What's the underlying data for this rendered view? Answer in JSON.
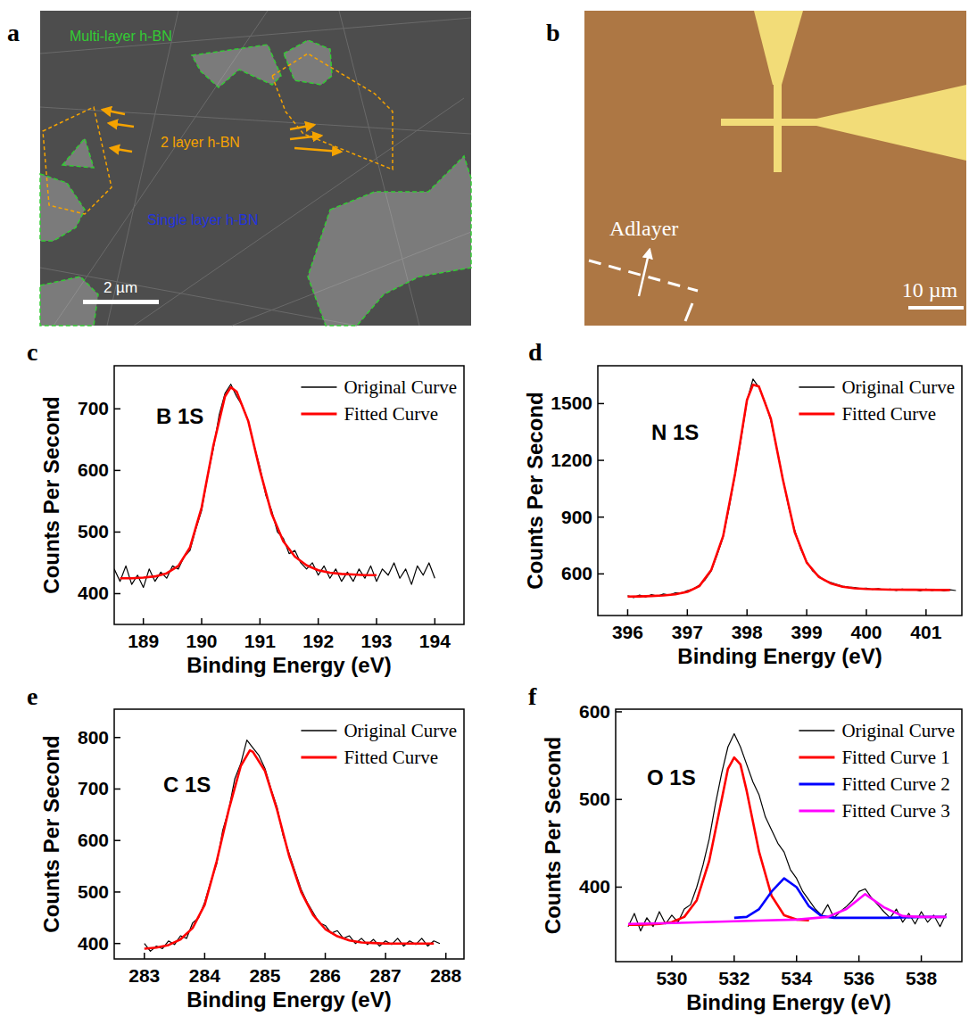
{
  "images": [
    {
      "panel": "a",
      "labels": [
        "Multi-layer h-BN",
        "2 layer h-BN",
        "Single layer h-BN"
      ],
      "scale_bar": "2 µm"
    },
    {
      "panel": "b",
      "labels": [
        "Adlayer"
      ],
      "scale_bar": "10 µm"
    }
  ],
  "chart_data": [
    {
      "type": "line",
      "panel": "c",
      "annotations": [
        "B 1S"
      ],
      "x_label": "Binding Energy (eV)",
      "y_label": "Counts Per Second",
      "xlim": [
        188.5,
        194.5
      ],
      "ylim": [
        350,
        770
      ],
      "xticks": [
        189,
        190,
        191,
        192,
        193,
        194
      ],
      "yticks": [
        400,
        500,
        600,
        700
      ],
      "legend": "upper right",
      "series": [
        {
          "name": "Original Curve",
          "color": "#000000",
          "x": [
            188.5,
            188.6,
            188.7,
            188.8,
            188.9,
            189.0,
            189.1,
            189.2,
            189.3,
            189.4,
            189.5,
            189.6,
            189.7,
            189.8,
            189.9,
            190.0,
            190.1,
            190.2,
            190.3,
            190.4,
            190.5,
            190.6,
            190.7,
            190.8,
            190.9,
            191.0,
            191.1,
            191.2,
            191.3,
            191.4,
            191.5,
            191.6,
            191.7,
            191.8,
            191.9,
            192.0,
            192.1,
            192.2,
            192.3,
            192.4,
            192.5,
            192.6,
            192.7,
            192.8,
            192.9,
            193.0,
            193.1,
            193.2,
            193.3,
            193.4,
            193.5,
            193.6,
            193.7,
            193.8,
            193.9,
            194.0
          ],
          "values": [
            440,
            420,
            445,
            415,
            430,
            410,
            440,
            420,
            435,
            425,
            445,
            440,
            460,
            470,
            505,
            535,
            590,
            635,
            690,
            725,
            740,
            720,
            705,
            680,
            640,
            605,
            560,
            535,
            500,
            490,
            465,
            470,
            450,
            440,
            450,
            430,
            445,
            425,
            440,
            420,
            435,
            420,
            440,
            425,
            445,
            420,
            440,
            430,
            450,
            425,
            440,
            415,
            445,
            430,
            450,
            425
          ]
        },
        {
          "name": "Fitted Curve",
          "color": "#ff0000",
          "x": [
            188.6,
            188.8,
            189.0,
            189.2,
            189.4,
            189.6,
            189.8,
            190.0,
            190.2,
            190.4,
            190.5,
            190.6,
            190.8,
            191.0,
            191.2,
            191.4,
            191.6,
            191.8,
            192.0,
            192.2,
            192.4,
            192.6,
            192.8,
            193.0
          ],
          "values": [
            425,
            425,
            426,
            428,
            433,
            445,
            475,
            540,
            640,
            720,
            735,
            728,
            680,
            600,
            530,
            485,
            460,
            446,
            438,
            434,
            432,
            431,
            430,
            430
          ]
        }
      ]
    },
    {
      "type": "line",
      "panel": "d",
      "annotations": [
        "N 1S"
      ],
      "x_label": "Binding Energy (eV)",
      "y_label": "Counts Per Second",
      "xlim": [
        395.5,
        401.6
      ],
      "ylim": [
        380,
        1700
      ],
      "xticks": [
        396,
        397,
        398,
        399,
        400,
        401
      ],
      "yticks": [
        600,
        900,
        1200,
        1500
      ],
      "legend": "upper right",
      "series": [
        {
          "name": "Original Curve",
          "color": "#000000",
          "x": [
            396.0,
            396.1,
            396.2,
            396.3,
            396.4,
            396.5,
            396.6,
            396.7,
            396.8,
            396.9,
            397.0,
            397.1,
            397.2,
            397.3,
            397.4,
            397.5,
            397.6,
            397.7,
            397.8,
            397.9,
            398.0,
            398.1,
            398.2,
            398.3,
            398.4,
            398.5,
            398.6,
            398.7,
            398.8,
            398.9,
            399.0,
            399.1,
            399.2,
            399.3,
            399.4,
            399.5,
            399.6,
            399.7,
            399.8,
            399.9,
            400.0,
            400.1,
            400.2,
            400.3,
            400.4,
            400.5,
            400.6,
            400.7,
            400.8,
            400.9,
            401.0,
            401.1,
            401.2,
            401.3,
            401.4,
            401.5
          ],
          "values": [
            485,
            475,
            488,
            478,
            490,
            482,
            494,
            488,
            500,
            498,
            512,
            520,
            540,
            570,
            615,
            700,
            795,
            950,
            1125,
            1310,
            1515,
            1630,
            1585,
            1510,
            1410,
            1260,
            1105,
            950,
            830,
            730,
            665,
            615,
            590,
            565,
            555,
            545,
            535,
            530,
            528,
            522,
            525,
            518,
            522,
            515,
            520,
            512,
            520,
            515,
            518,
            510,
            520,
            512,
            518,
            510,
            516,
            512
          ]
        },
        {
          "name": "Fitted Curve",
          "color": "#ff0000",
          "x": [
            396.0,
            396.2,
            396.4,
            396.6,
            396.8,
            397.0,
            397.2,
            397.4,
            397.6,
            397.8,
            398.0,
            398.1,
            398.2,
            398.4,
            398.6,
            398.8,
            399.0,
            399.2,
            399.4,
            399.6,
            399.8,
            400.0,
            400.4,
            400.8,
            401.2,
            401.4
          ],
          "values": [
            480,
            481,
            483,
            486,
            492,
            505,
            535,
            620,
            800,
            1130,
            1520,
            1600,
            1590,
            1420,
            1100,
            820,
            660,
            585,
            550,
            532,
            524,
            520,
            517,
            516,
            515,
            515
          ]
        }
      ]
    },
    {
      "type": "line",
      "panel": "e",
      "annotations": [
        "C 1S"
      ],
      "x_label": "Binding Energy (eV)",
      "y_label": "Counts Per Second",
      "xlim": [
        282.5,
        288.3
      ],
      "ylim": [
        370,
        855
      ],
      "xticks": [
        283,
        284,
        285,
        286,
        287,
        288
      ],
      "yticks": [
        400,
        500,
        600,
        700,
        800
      ],
      "legend": "upper right",
      "series": [
        {
          "name": "Original Curve",
          "color": "#000000",
          "x": [
            283.0,
            283.1,
            283.2,
            283.3,
            283.4,
            283.5,
            283.6,
            283.7,
            283.8,
            283.9,
            284.0,
            284.1,
            284.2,
            284.3,
            284.4,
            284.5,
            284.6,
            284.7,
            284.8,
            284.9,
            285.0,
            285.1,
            285.2,
            285.3,
            285.4,
            285.5,
            285.6,
            285.7,
            285.8,
            285.9,
            286.0,
            286.1,
            286.2,
            286.3,
            286.4,
            286.5,
            286.6,
            286.7,
            286.8,
            286.9,
            287.0,
            287.1,
            287.2,
            287.3,
            287.4,
            287.5,
            287.6,
            287.7,
            287.8,
            287.9
          ],
          "values": [
            400,
            385,
            395,
            390,
            405,
            398,
            415,
            410,
            440,
            450,
            480,
            520,
            555,
            620,
            660,
            720,
            750,
            795,
            780,
            765,
            740,
            700,
            665,
            610,
            575,
            540,
            505,
            480,
            460,
            440,
            435,
            420,
            425,
            410,
            415,
            400,
            410,
            398,
            408,
            395,
            405,
            398,
            410,
            395,
            405,
            398,
            410,
            395,
            405,
            400
          ]
        },
        {
          "name": "Fitted Curve",
          "color": "#ff0000",
          "x": [
            283.0,
            283.2,
            283.4,
            283.6,
            283.8,
            284.0,
            284.2,
            284.4,
            284.6,
            284.75,
            284.8,
            285.0,
            285.2,
            285.4,
            285.6,
            285.8,
            286.0,
            286.2,
            286.4,
            286.6,
            286.8,
            287.0,
            287.4,
            287.8
          ],
          "values": [
            390,
            392,
            397,
            408,
            430,
            475,
            560,
            660,
            745,
            775,
            772,
            735,
            660,
            570,
            500,
            455,
            428,
            414,
            406,
            402,
            401,
            400,
            400,
            400
          ]
        }
      ]
    },
    {
      "type": "line",
      "panel": "f",
      "annotations": [
        "O 1S"
      ],
      "x_label": "Binding Energy (eV)",
      "y_label": "Counts Per Second",
      "xlim": [
        528.2,
        539.3
      ],
      "ylim": [
        315,
        603
      ],
      "xticks": [
        530,
        532,
        534,
        536,
        538
      ],
      "yticks": [
        400,
        500,
        600
      ],
      "legend": "upper right",
      "series": [
        {
          "name": "Original Curve",
          "color": "#000000",
          "x": [
            528.6,
            528.8,
            529.0,
            529.2,
            529.4,
            529.6,
            529.8,
            530.0,
            530.2,
            530.4,
            530.6,
            530.8,
            531.0,
            531.2,
            531.4,
            531.6,
            531.8,
            532.0,
            532.2,
            532.4,
            532.6,
            532.8,
            533.0,
            533.2,
            533.4,
            533.6,
            533.8,
            534.0,
            534.2,
            534.4,
            534.6,
            534.8,
            535.0,
            535.2,
            535.4,
            535.6,
            535.8,
            536.0,
            536.2,
            536.4,
            536.6,
            536.8,
            537.0,
            537.2,
            537.4,
            537.6,
            537.8,
            538.0,
            538.2,
            538.4,
            538.6,
            538.8
          ],
          "values": [
            355,
            370,
            350,
            365,
            355,
            372,
            358,
            368,
            360,
            375,
            380,
            400,
            425,
            455,
            495,
            530,
            560,
            575,
            560,
            540,
            520,
            505,
            480,
            465,
            450,
            440,
            420,
            410,
            395,
            385,
            375,
            368,
            380,
            365,
            372,
            378,
            385,
            395,
            398,
            388,
            380,
            372,
            365,
            375,
            360,
            370,
            358,
            372,
            360,
            368,
            355,
            370
          ]
        },
        {
          "name": "Fitted Curve 1",
          "color": "#ff0000",
          "x": [
            528.6,
            529.0,
            529.6,
            530.0,
            530.4,
            530.8,
            531.2,
            531.6,
            531.8,
            532.0,
            532.2,
            532.4,
            532.8,
            533.2,
            533.6,
            534.0,
            534.4
          ],
          "values": [
            357,
            357,
            358,
            360,
            366,
            385,
            430,
            500,
            535,
            548,
            540,
            510,
            440,
            390,
            368,
            363,
            362
          ]
        },
        {
          "name": "Fitted Curve 2",
          "color": "#0000ff",
          "x": [
            532.0,
            532.4,
            532.8,
            533.2,
            533.6,
            534.0,
            534.4,
            534.8,
            535.2,
            536.0,
            537.0,
            538.0,
            538.8
          ],
          "values": [
            365,
            366,
            375,
            395,
            410,
            400,
            378,
            367,
            365,
            365,
            365,
            366,
            366
          ]
        },
        {
          "name": "Fitted Curve 3",
          "color": "#ff00ff",
          "x": [
            528.6,
            530.0,
            531.0,
            532.0,
            533.0,
            534.0,
            535.0,
            535.6,
            536.2,
            536.8,
            537.4,
            538.0,
            538.8
          ],
          "values": [
            358,
            359,
            360,
            361,
            362,
            363,
            366,
            375,
            392,
            377,
            367,
            366,
            366
          ]
        }
      ]
    }
  ]
}
